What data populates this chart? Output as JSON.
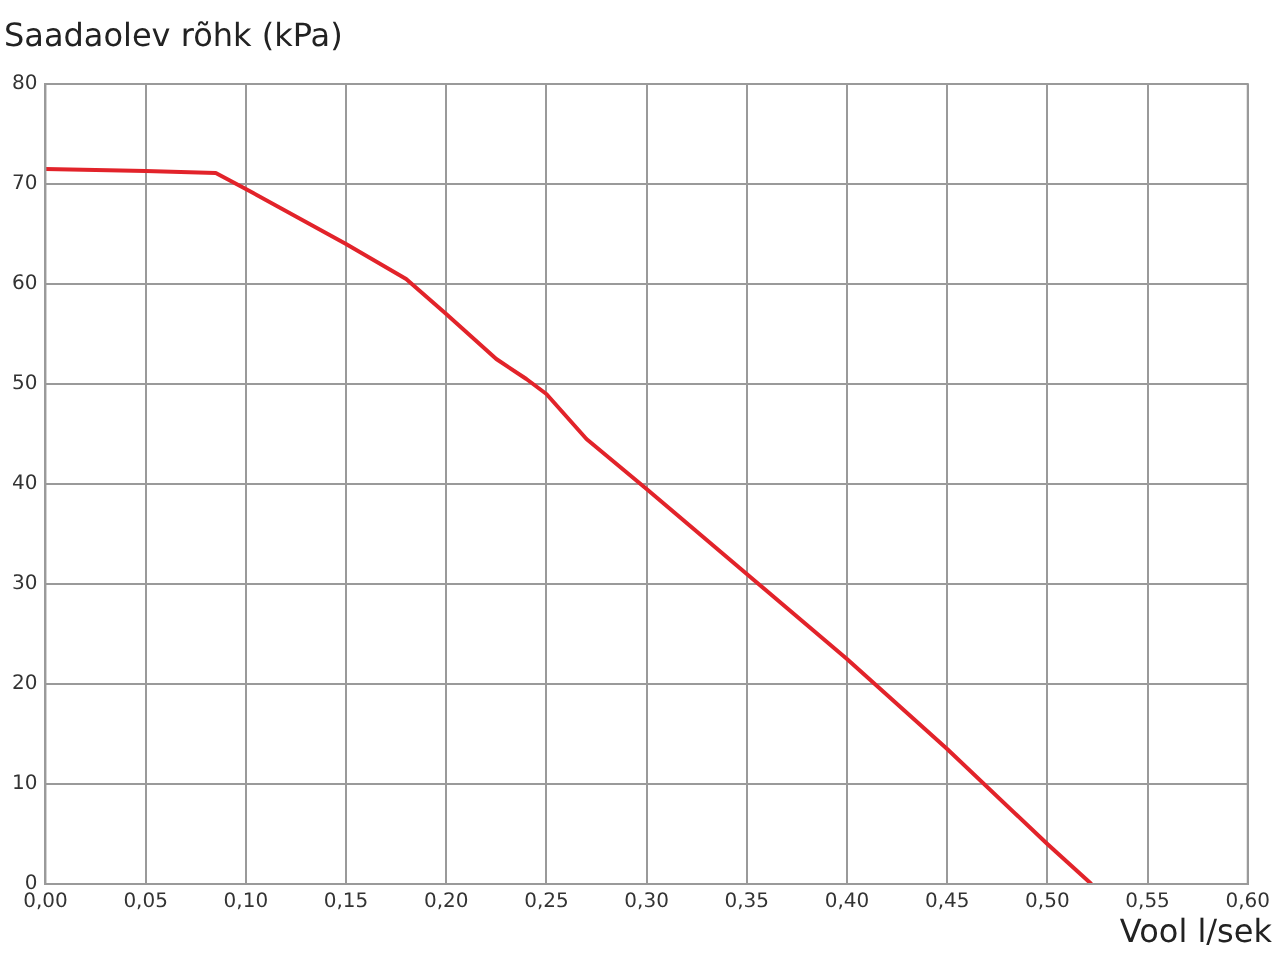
{
  "chart_data": {
    "type": "line",
    "ylabel": "Saadaolev rõhk (kPa)",
    "xlabel": "Vool l/sek",
    "series": [
      {
        "color": "#e2232a",
        "x": [
          0,
          0.05,
          0.085,
          0.1,
          0.15,
          0.18,
          0.2,
          0.225,
          0.24,
          0.25,
          0.27,
          0.3,
          0.35,
          0.4,
          0.45,
          0.5,
          0.522
        ],
        "values": [
          71.5,
          71.3,
          71.1,
          69.5,
          64,
          60.5,
          57,
          52.5,
          50.5,
          49,
          44.5,
          39.5,
          31,
          22.5,
          13.5,
          4,
          0
        ]
      }
    ],
    "xlim": [
      0,
      0.6
    ],
    "xticks": [
      {
        "value": 0,
        "label": "0,00"
      },
      {
        "value": 0.05,
        "label": "0,05"
      },
      {
        "value": 0.1,
        "label": "0,10"
      },
      {
        "value": 0.15,
        "label": "0,15"
      },
      {
        "value": 0.2,
        "label": "0,20"
      },
      {
        "value": 0.25,
        "label": "0,25"
      },
      {
        "value": 0.3,
        "label": "0,30"
      },
      {
        "value": 0.35,
        "label": "0,35"
      },
      {
        "value": 0.4,
        "label": "0,40"
      },
      {
        "value": 0.45,
        "label": "0,45"
      },
      {
        "value": 0.5,
        "label": "0,50"
      },
      {
        "value": 0.55,
        "label": "0,55"
      },
      {
        "value": 0.6,
        "label": "0,60"
      }
    ],
    "ylim": [
      0,
      80
    ],
    "yticks": [
      0,
      10,
      20,
      30,
      40,
      50,
      60,
      70,
      80
    ],
    "grid": true,
    "legend": false,
    "marker": "none",
    "line_style": "solid"
  }
}
